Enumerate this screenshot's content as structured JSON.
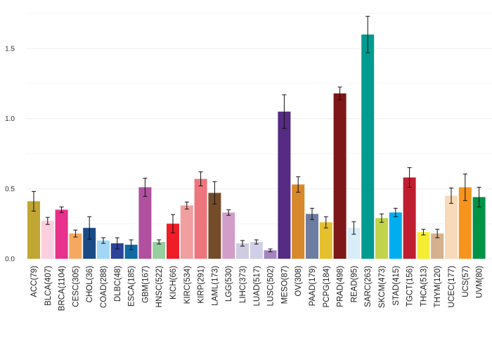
{
  "chart_data": {
    "type": "bar",
    "categories": [
      "ACC(79)",
      "BLCA(407)",
      "BRCA(1104)",
      "CESC(305)",
      "CHOL(36)",
      "COAD(288)",
      "DLBC(48)",
      "ESCA(185)",
      "GBM(167)",
      "HNSC(522)",
      "KICH(66)",
      "KIRC(534)",
      "KIRP(291)",
      "LAML(173)",
      "LGG(530)",
      "LIHC(373)",
      "LUAD(517)",
      "LUSC(502)",
      "MESO(87)",
      "OV(308)",
      "PAAD(179)",
      "PCPG(184)",
      "PRAD(498)",
      "READ(95)",
      "SARC(263)",
      "SKCM(473)",
      "STAD(415)",
      "TGCT(156)",
      "THCA(513)",
      "THYM(120)",
      "UCEC(177)",
      "UCS(57)",
      "UVM(80)"
    ],
    "values": [
      0.41,
      0.27,
      0.35,
      0.18,
      0.22,
      0.13,
      0.11,
      0.1,
      0.51,
      0.12,
      0.25,
      0.38,
      0.57,
      0.47,
      0.33,
      0.11,
      0.12,
      0.06,
      1.05,
      0.53,
      0.32,
      0.26,
      1.18,
      0.22,
      1.6,
      0.29,
      0.33,
      0.58,
      0.19,
      0.18,
      0.45,
      0.51,
      0.44
    ],
    "errors": [
      0.07,
      0.025,
      0.02,
      0.025,
      0.08,
      0.02,
      0.04,
      0.035,
      0.065,
      0.015,
      0.065,
      0.025,
      0.05,
      0.08,
      0.02,
      0.02,
      0.015,
      0.01,
      0.12,
      0.055,
      0.04,
      0.04,
      0.045,
      0.045,
      0.13,
      0.03,
      0.03,
      0.07,
      0.02,
      0.03,
      0.055,
      0.095,
      0.07
    ],
    "colors": [
      "#c1a634",
      "#fbcfe0",
      "#e7318c",
      "#f5a960",
      "#1a4b86",
      "#a1d7f5",
      "#2d429a",
      "#0f6aa3",
      "#b0509f",
      "#96ce9f",
      "#ef1d26",
      "#f19ea0",
      "#ec767b",
      "#754c29",
      "#d19ec9",
      "#cfcbe0",
      "#d0cfe9",
      "#a384bf",
      "#552b83",
      "#d7882b",
      "#6d7da1",
      "#e5c02d",
      "#7e1718",
      "#d9edf8",
      "#009b90",
      "#c2d44c",
      "#00aeef",
      "#bf1e30",
      "#f5ed33",
      "#d5b08c",
      "#f8dab9",
      "#f7941d",
      "#009345"
    ],
    "yticks": [
      "0.0",
      "0.5",
      "1.0",
      "1.5"
    ],
    "ylim": [
      0,
      1.75
    ],
    "grid": true,
    "legend": "none"
  }
}
